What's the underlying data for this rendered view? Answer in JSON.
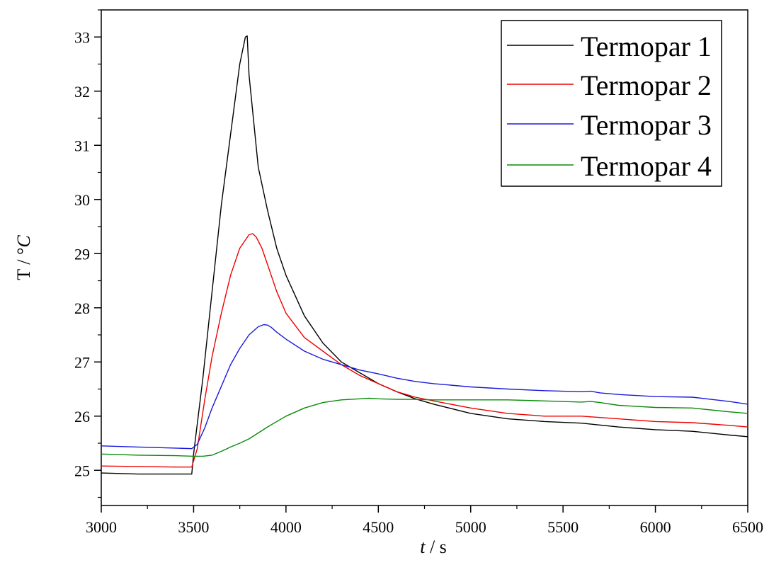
{
  "chart_data": {
    "type": "line",
    "title": "",
    "xlabel": {
      "italic": "t",
      "rest": " / s"
    },
    "ylabel": {
      "plain": "T / °",
      "italic": "C"
    },
    "xlim": [
      3000,
      6500
    ],
    "ylim": [
      24.35,
      33.5
    ],
    "xticks": [
      3000,
      3500,
      4000,
      4500,
      5000,
      5500,
      6000,
      6500
    ],
    "xtick_labels": [
      "3000",
      "3500",
      "4000",
      "4500",
      "5000",
      "5500",
      "6000",
      "6500"
    ],
    "yticks": [
      25,
      26,
      27,
      28,
      29,
      30,
      31,
      32,
      33
    ],
    "ytick_labels": [
      "25",
      "26",
      "27",
      "28",
      "29",
      "30",
      "31",
      "32",
      "33"
    ],
    "grid": false,
    "legend_position": "top-right",
    "series": [
      {
        "name": "Termopar 1",
        "color": "#000000",
        "x": [
          3000,
          3200,
          3400,
          3490,
          3500,
          3550,
          3600,
          3650,
          3700,
          3750,
          3780,
          3790,
          3800,
          3850,
          3900,
          3950,
          4000,
          4100,
          4200,
          4300,
          4400,
          4500,
          4600,
          4700,
          4800,
          5000,
          5200,
          5400,
          5600,
          5800,
          6000,
          6200,
          6400,
          6500
        ],
        "y": [
          24.95,
          24.93,
          24.93,
          24.93,
          25.3,
          26.7,
          28.3,
          29.9,
          31.2,
          32.5,
          33.0,
          33.02,
          32.3,
          30.6,
          29.8,
          29.1,
          28.6,
          27.85,
          27.35,
          27.0,
          26.8,
          26.6,
          26.45,
          26.32,
          26.22,
          26.05,
          25.95,
          25.9,
          25.87,
          25.8,
          25.75,
          25.72,
          25.65,
          25.62
        ]
      },
      {
        "name": "Termopar 2",
        "color": "#ee0000",
        "x": [
          3000,
          3200,
          3400,
          3490,
          3520,
          3560,
          3600,
          3650,
          3700,
          3750,
          3800,
          3820,
          3840,
          3870,
          3900,
          3950,
          4000,
          4100,
          4200,
          4300,
          4400,
          4500,
          4600,
          4700,
          4800,
          5000,
          5200,
          5400,
          5600,
          5800,
          6000,
          6200,
          6400,
          6500
        ],
        "y": [
          25.08,
          25.07,
          25.06,
          25.06,
          25.4,
          26.3,
          27.1,
          27.9,
          28.6,
          29.1,
          29.35,
          29.37,
          29.3,
          29.1,
          28.8,
          28.3,
          27.9,
          27.45,
          27.2,
          26.95,
          26.75,
          26.6,
          26.45,
          26.35,
          26.28,
          26.15,
          26.05,
          26.0,
          26.0,
          25.95,
          25.9,
          25.88,
          25.83,
          25.8
        ]
      },
      {
        "name": "Termopar 3",
        "color": "#1a1add",
        "x": [
          3000,
          3200,
          3400,
          3490,
          3520,
          3560,
          3600,
          3650,
          3700,
          3750,
          3800,
          3850,
          3880,
          3900,
          3920,
          3950,
          4000,
          4100,
          4200,
          4300,
          4400,
          4500,
          4600,
          4700,
          4800,
          5000,
          5200,
          5400,
          5600,
          5650,
          5700,
          5800,
          6000,
          6200,
          6400,
          6500
        ],
        "y": [
          25.45,
          25.43,
          25.41,
          25.4,
          25.48,
          25.78,
          26.15,
          26.55,
          26.95,
          27.25,
          27.5,
          27.65,
          27.69,
          27.68,
          27.64,
          27.55,
          27.42,
          27.2,
          27.05,
          26.95,
          26.85,
          26.78,
          26.7,
          26.64,
          26.6,
          26.54,
          26.5,
          26.47,
          26.45,
          26.46,
          26.43,
          26.4,
          26.36,
          26.35,
          26.27,
          26.22
        ]
      },
      {
        "name": "Termopar 4",
        "color": "#0a8a0a",
        "x": [
          3000,
          3200,
          3400,
          3500,
          3550,
          3600,
          3650,
          3700,
          3750,
          3800,
          3900,
          4000,
          4100,
          4200,
          4300,
          4400,
          4450,
          4500,
          4600,
          4700,
          4800,
          5000,
          5200,
          5400,
          5600,
          5650,
          5700,
          5800,
          6000,
          6200,
          6400,
          6500
        ],
        "y": [
          25.3,
          25.28,
          25.27,
          25.26,
          25.26,
          25.28,
          25.35,
          25.43,
          25.5,
          25.58,
          25.8,
          26.0,
          26.15,
          26.25,
          26.3,
          26.32,
          26.33,
          26.32,
          26.31,
          26.31,
          26.3,
          26.3,
          26.3,
          26.28,
          26.26,
          26.27,
          26.25,
          26.2,
          26.16,
          26.15,
          26.08,
          26.05
        ]
      }
    ]
  }
}
